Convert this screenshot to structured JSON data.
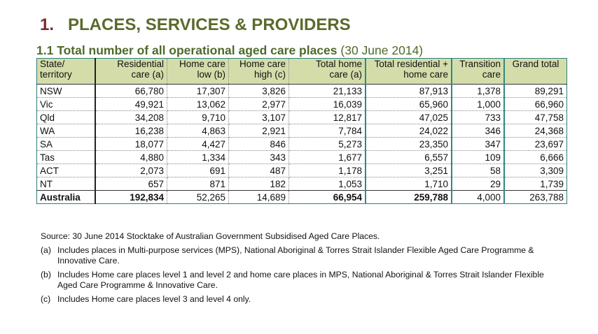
{
  "heading": {
    "number": "1.",
    "title": "PLACES, SERVICES & PROVIDERS"
  },
  "subheading": {
    "title": "1.1 Total number of all operational aged care places",
    "date": "(30 June 2014)"
  },
  "table": {
    "headers": [
      [
        "State/",
        "territory"
      ],
      [
        "Residential",
        "care (a)"
      ],
      [
        "Home care",
        "low (b)"
      ],
      [
        "Home care",
        "high (c)"
      ],
      [
        "Total home",
        "care (a)"
      ],
      [
        "Total residential +",
        "home care"
      ],
      [
        "Transition",
        "care"
      ],
      [
        "Grand total",
        ""
      ]
    ],
    "rows": [
      [
        "NSW",
        "66,780",
        "17,307",
        "3,826",
        "21,133",
        "87,913",
        "1,378",
        "89,291"
      ],
      [
        "Vic",
        "49,921",
        "13,062",
        "2,977",
        "16,039",
        "65,960",
        "1,000",
        "66,960"
      ],
      [
        "Qld",
        "34,208",
        "9,710",
        "3,107",
        "12,817",
        "47,025",
        "733",
        "47,758"
      ],
      [
        "WA",
        "16,238",
        "4,863",
        "2,921",
        "7,784",
        "24,022",
        "346",
        "24,368"
      ],
      [
        "SA",
        "18,077",
        "4,427",
        "846",
        "5,273",
        "23,350",
        "347",
        "23,697"
      ],
      [
        "Tas",
        "4,880",
        "1,334",
        "343",
        "1,677",
        "6,557",
        "109",
        "6,666"
      ],
      [
        "ACT",
        "2,073",
        "691",
        "487",
        "1,178",
        "3,251",
        "58",
        "3,309"
      ],
      [
        "NT",
        "657",
        "871",
        "182",
        "1,053",
        "1,710",
        "29",
        "1,739"
      ]
    ],
    "total": [
      "Australia",
      "192,834",
      "52,265",
      "14,689",
      "66,954",
      "259,788",
      "4,000",
      "263,788"
    ]
  },
  "source": "Source: 30 June 2014 Stocktake of Australian Government Subsidised Aged Care Places.",
  "notes": [
    {
      "label": "(a)",
      "text": "Includes places in Multi-purpose services (MPS), National Aboriginal & Torres Strait Islander Flexible Aged Care Programme & Innovative Care."
    },
    {
      "label": "(b)",
      "text": "Includes Home care places level 1 and level 2 and home care places in MPS, National Aboriginal & Torres Strait Islander Flexible Aged Care Programme & Innovative Care."
    },
    {
      "label": "(c)",
      "text": "Includes Home care places level 3 and level 4 only."
    }
  ]
}
